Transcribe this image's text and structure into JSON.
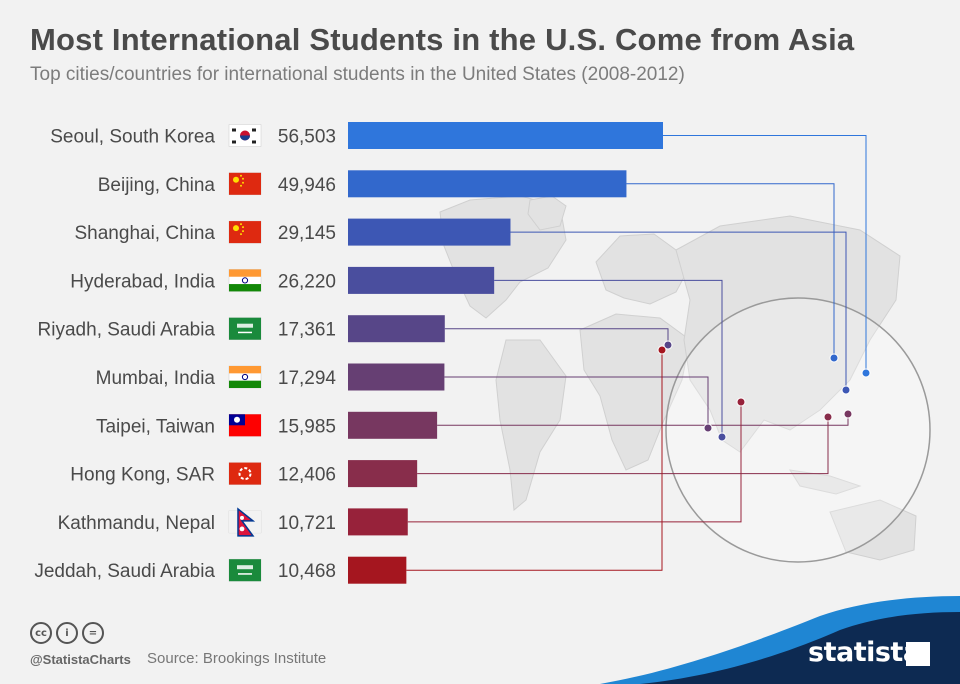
{
  "header": {
    "title": "Most International Students in the U.S. Come from Asia",
    "subtitle": "Top cities/countries for international students in the United States (2008-2012)"
  },
  "chart_data": {
    "type": "bar",
    "orientation": "horizontal",
    "categories": [
      "Seoul, South Korea",
      "Beijing, China",
      "Shanghai, China",
      "Hyderabad, India",
      "Riyadh, Saudi Arabia",
      "Mumbai, India",
      "Taipei, Taiwan",
      "Hong Kong, SAR",
      "Kathmandu, Nepal",
      "Jeddah, Saudi Arabia"
    ],
    "values": [
      56503,
      49946,
      29145,
      26220,
      17361,
      17294,
      15985,
      12406,
      10721,
      10468
    ],
    "value_labels": [
      "56,503",
      "49,946",
      "29,145",
      "26,220",
      "17,361",
      "17,294",
      "15,985",
      "12,406",
      "10,721",
      "10,468"
    ],
    "flags": [
      "south-korea-flag",
      "china-flag",
      "china-flag",
      "india-flag",
      "saudi-arabia-flag",
      "india-flag",
      "taiwan-flag",
      "hong-kong-flag",
      "nepal-flag",
      "saudi-arabia-flag"
    ],
    "bar_colors": [
      "#2f76dc",
      "#3268cc",
      "#3d57b4",
      "#4a4e9e",
      "#574688",
      "#663f73",
      "#773760",
      "#882d4b",
      "#97223a",
      "#a5161f"
    ],
    "xlim": [
      0,
      56503
    ],
    "background": "world-map",
    "grid": false,
    "legend": "none"
  },
  "footer": {
    "icons": [
      "creative-commons-icon",
      "attribution-icon",
      "no-derivatives-icon"
    ],
    "icon_glyphs": [
      "cc",
      "i",
      "="
    ],
    "handle": "@StatistaCharts",
    "source": "Source: Brookings Institute",
    "brand": "statista"
  }
}
